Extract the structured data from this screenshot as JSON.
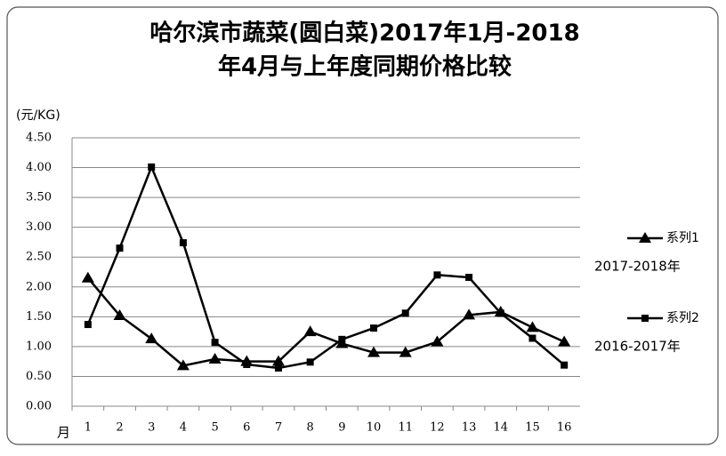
{
  "chart_data": {
    "type": "line",
    "title": [
      "哈尔滨市蔬菜(圆白菜)2017年1月-2018",
      "年4月与上年度同期价格比较"
    ],
    "y_label": "(元/KG)",
    "x_label": "月",
    "categories": [
      "1",
      "2",
      "3",
      "4",
      "5",
      "6",
      "7",
      "8",
      "9",
      "10",
      "11",
      "12",
      "13",
      "14",
      "15",
      "16"
    ],
    "series": [
      {
        "name": "系列1",
        "color": "#000000",
        "marker": "triangle",
        "annotation": "2017-2018年",
        "values": [
          2.15,
          1.52,
          1.13,
          0.68,
          0.79,
          0.75,
          0.75,
          1.25,
          1.05,
          0.9,
          0.9,
          1.08,
          1.53,
          1.58,
          1.32,
          1.08
        ]
      },
      {
        "name": "系列2",
        "color": "#000000",
        "marker": "square",
        "annotation": "2016-2017年",
        "values": [
          1.37,
          2.65,
          4.01,
          2.74,
          1.07,
          0.7,
          0.64,
          0.74,
          1.12,
          1.31,
          1.56,
          2.2,
          2.16,
          1.56,
          1.14,
          0.69
        ]
      }
    ],
    "ylim": [
      0,
      4.5
    ],
    "yticks": [
      {
        "value": 0,
        "label": "0.00"
      },
      {
        "value": 0.5,
        "label": "0.50"
      },
      {
        "value": 1,
        "label": "1.00"
      },
      {
        "value": 1.5,
        "label": "1.50"
      },
      {
        "value": 2,
        "label": "2.00"
      },
      {
        "value": 2.5,
        "label": "2.50"
      },
      {
        "value": 3,
        "label": "3.00"
      },
      {
        "value": 3.5,
        "label": "3.50"
      },
      {
        "value": 4,
        "label": "4.00"
      },
      {
        "value": 4.5,
        "label": "4.50"
      }
    ],
    "grid": true
  }
}
